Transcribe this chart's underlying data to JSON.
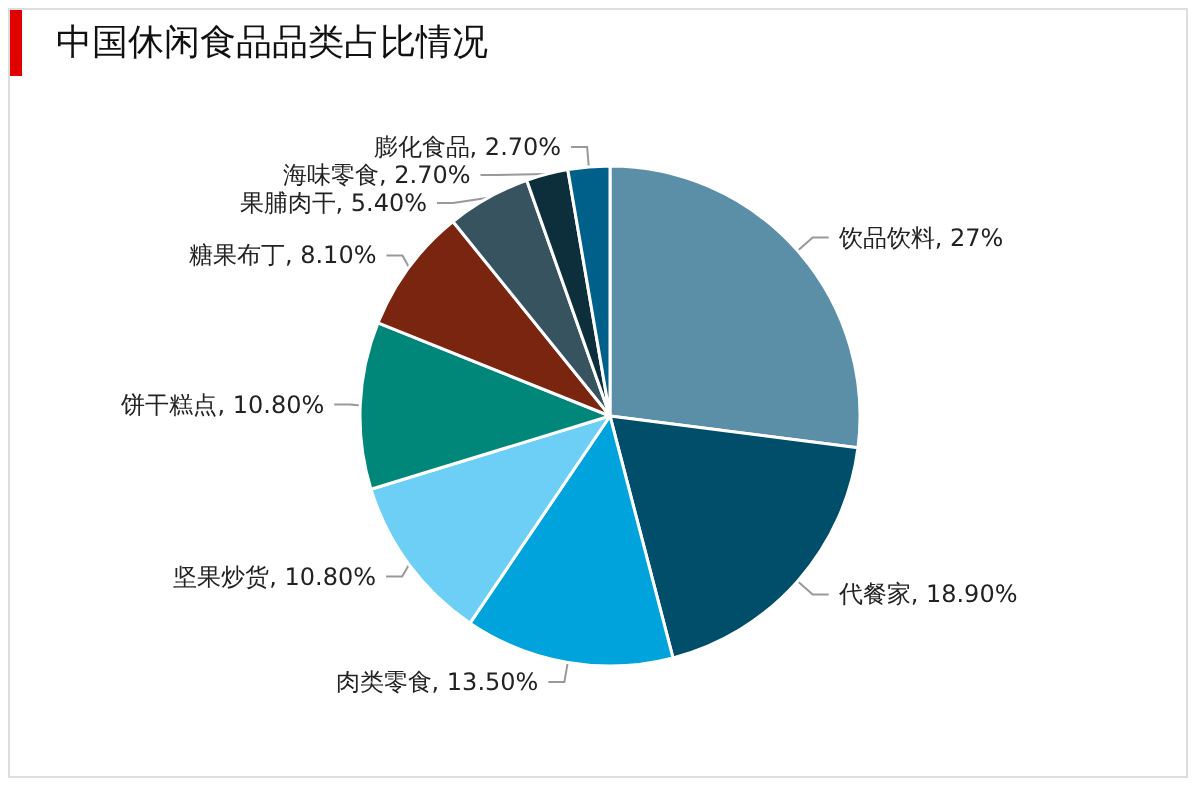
{
  "chart_data": {
    "type": "pie",
    "title": "中国休闲食品品类占比情况",
    "categories": [
      "饮品饮料",
      "代餐家",
      "肉类零食",
      "坚果炒货",
      "饼干糕点",
      "糖果布丁",
      "果脯肉干",
      "海味零食",
      "膨化食品"
    ],
    "values": [
      27,
      18.9,
      13.5,
      10.8,
      10.8,
      8.1,
      5.4,
      2.7,
      2.7
    ],
    "value_labels": [
      "27%",
      "18.90%",
      "13.50%",
      "10.80%",
      "10.80%",
      "8.10%",
      "5.40%",
      "2.70%",
      "2.70%"
    ],
    "colors": [
      "#5b8fa8",
      "#004e6a",
      "#00a3dc",
      "#6dcff6",
      "#00877a",
      "#7a2510",
      "#37535f",
      "#0d2f3c",
      "#00608a"
    ],
    "legend": false
  }
}
